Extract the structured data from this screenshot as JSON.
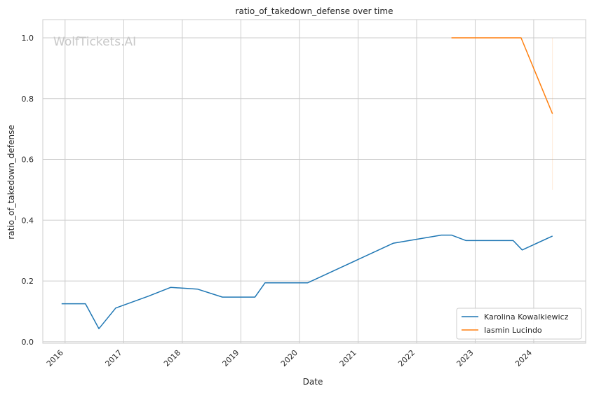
{
  "chart_data": {
    "type": "line",
    "title": "ratio_of_takedown_defense over time",
    "xlabel": "Date",
    "ylabel": "ratio_of_takedown_defense",
    "watermark": "WolfTickets.AI",
    "x_ticks": [
      "2016",
      "2017",
      "2018",
      "2019",
      "2020",
      "2021",
      "2022",
      "2023",
      "2024"
    ],
    "y_ticks": [
      "0.0",
      "0.2",
      "0.4",
      "0.6",
      "0.8",
      "1.0"
    ],
    "xlim": [
      "2015-08-15",
      "2024-11-20"
    ],
    "ylim": [
      -0.005,
      1.06
    ],
    "grid": true,
    "legend_position": "bottom-right",
    "series": [
      {
        "name": "Karolina Kowalkiewicz",
        "color": "#1f77b4",
        "points": [
          [
            "2015-12-10",
            0.125
          ],
          [
            "2016-05-07",
            0.125
          ],
          [
            "2016-07-30",
            0.043
          ],
          [
            "2016-11-12",
            0.111
          ],
          [
            "2017-06-03",
            0.15
          ],
          [
            "2017-10-21",
            0.179
          ],
          [
            "2018-04-07",
            0.173
          ],
          [
            "2018-09-08",
            0.147
          ],
          [
            "2019-03-30",
            0.147
          ],
          [
            "2019-06-01",
            0.194
          ],
          [
            "2020-02-22",
            0.194
          ],
          [
            "2021-08-07",
            0.324
          ],
          [
            "2022-06-04",
            0.351
          ],
          [
            "2022-08-06",
            0.351
          ],
          [
            "2022-11-05",
            0.333
          ],
          [
            "2023-08-26",
            0.333
          ],
          [
            "2023-10-21",
            0.302
          ],
          [
            "2024-04-27",
            0.348
          ]
        ]
      },
      {
        "name": "Iasmin Lucindo",
        "color": "#ff7f0e",
        "points": [
          [
            "2022-08-06",
            1.0
          ],
          [
            "2023-10-14",
            1.0
          ],
          [
            "2024-04-27",
            0.75
          ]
        ],
        "errorbar": {
          "x": "2024-04-27",
          "low": 0.5,
          "high": 1.0
        }
      }
    ]
  }
}
